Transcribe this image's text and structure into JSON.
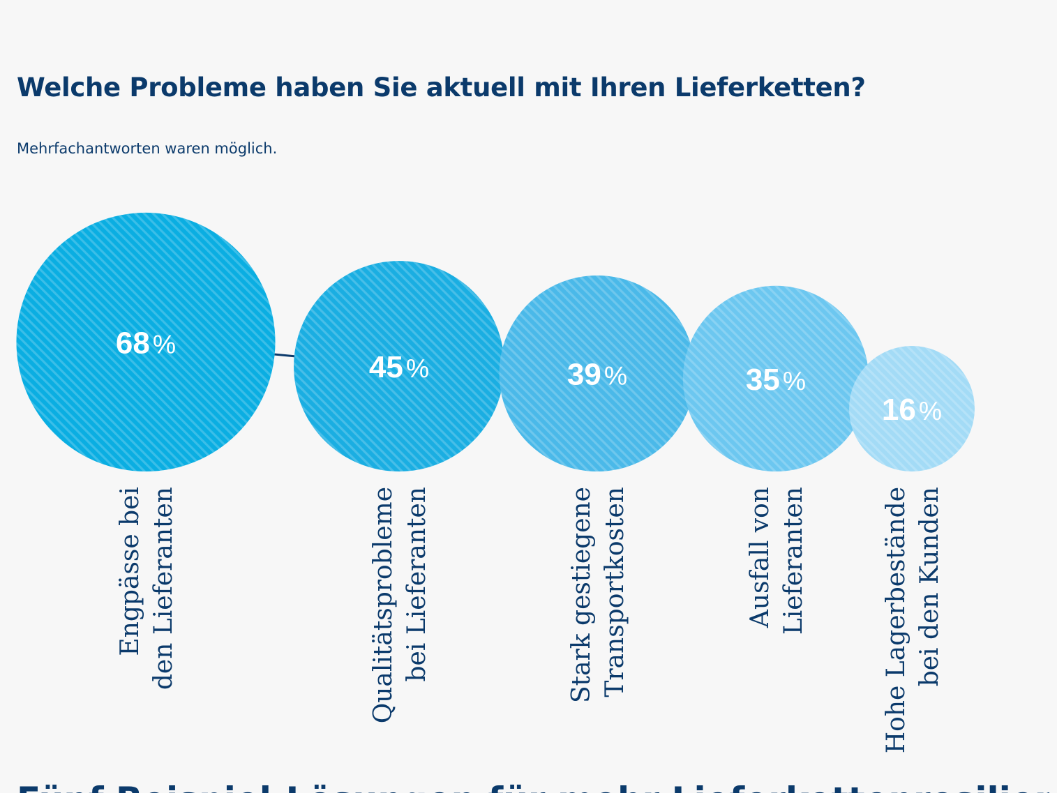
{
  "header": {
    "title": "Welche Probleme haben Sie aktuell mit Ihren Lieferketten?",
    "subtitle": "Mehrfachantworten waren möglich."
  },
  "chart_data": {
    "type": "bubble",
    "title": "Welche Probleme haben Sie aktuell mit Ihren Lieferketten?",
    "subtitle": "Mehrfachantworten waren möglich.",
    "unit": "%",
    "categories": [
      [
        "Engpässe bei",
        "den Lieferanten"
      ],
      [
        "Qualitätsprobleme",
        "bei Lieferanten"
      ],
      [
        "Stark gestiegene",
        "Transportkosten"
      ],
      [
        "Ausfall von",
        "Lieferanten"
      ],
      [
        "Hohe Lagerbestände",
        "bei den Kunden"
      ]
    ],
    "values": [
      68,
      45,
      39,
      35,
      16
    ],
    "value_labels": [
      "68",
      "45",
      "39",
      "35",
      "16"
    ],
    "colors": {
      "bubble_fills": [
        "#0aaee2",
        "#1aaee2",
        "#4ab9e9",
        "#6cc7f0",
        "#a3dbf6"
      ],
      "text_dark": "#0b3a6b",
      "connector": "#0b3a6b",
      "label_inside": "#ffffff"
    }
  },
  "footer": {
    "heading": "Fünf Beispiel-Lösungen für mehr Lieferkettenresilienz"
  }
}
